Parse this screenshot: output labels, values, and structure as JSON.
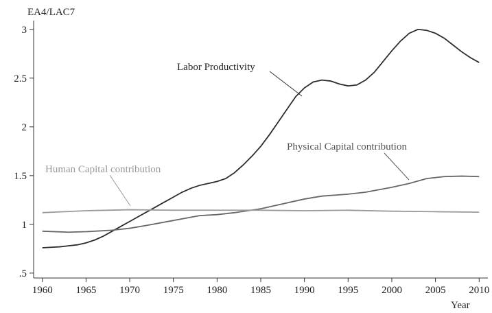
{
  "chart_data": {
    "type": "line",
    "y_label": "EA4/LAC7",
    "x_label": "Year",
    "xlim": [
      1959,
      2011
    ],
    "xticks": [
      1960,
      1965,
      1970,
      1975,
      1980,
      1985,
      1990,
      1995,
      2000,
      2005,
      2010
    ],
    "ylim": [
      0.45,
      3.09
    ],
    "yticks": [
      {
        "value": 0.5,
        "label": ".5"
      },
      1,
      1.5,
      2,
      2.5,
      3
    ],
    "grid": false,
    "annotations": [
      "Labor Productivity",
      "Physical Capital contribution",
      "Human Capital contribution"
    ],
    "series": [
      {
        "name": "Labor Productivity",
        "color": "#2b2b2b",
        "x": [
          1960,
          1961,
          1962,
          1963,
          1964,
          1965,
          1966,
          1967,
          1968,
          1969,
          1970,
          1971,
          1972,
          1973,
          1974,
          1975,
          1976,
          1977,
          1978,
          1979,
          1980,
          1981,
          1982,
          1983,
          1984,
          1985,
          1986,
          1987,
          1988,
          1989,
          1990,
          1991,
          1992,
          1993,
          1994,
          1995,
          1996,
          1997,
          1998,
          1999,
          2000,
          2001,
          2002,
          2003,
          2004,
          2005,
          2006,
          2007,
          2008,
          2009,
          2010
        ],
        "values": [
          0.76,
          0.765,
          0.77,
          0.78,
          0.79,
          0.81,
          0.84,
          0.88,
          0.93,
          0.98,
          1.03,
          1.08,
          1.13,
          1.18,
          1.23,
          1.28,
          1.33,
          1.37,
          1.4,
          1.42,
          1.44,
          1.47,
          1.53,
          1.61,
          1.7,
          1.8,
          1.92,
          2.05,
          2.18,
          2.31,
          2.4,
          2.46,
          2.48,
          2.47,
          2.44,
          2.42,
          2.43,
          2.48,
          2.56,
          2.67,
          2.78,
          2.88,
          2.96,
          3.0,
          2.99,
          2.96,
          2.91,
          2.84,
          2.77,
          2.71,
          2.66
        ]
      },
      {
        "name": "Physical Capital contribution",
        "color": "#666666",
        "x": [
          1960,
          1963,
          1965,
          1968,
          1970,
          1972,
          1975,
          1978,
          1980,
          1982,
          1985,
          1988,
          1990,
          1992,
          1995,
          1997,
          2000,
          2002,
          2004,
          2006,
          2008,
          2010
        ],
        "values": [
          0.93,
          0.92,
          0.925,
          0.94,
          0.96,
          0.99,
          1.04,
          1.09,
          1.1,
          1.12,
          1.16,
          1.22,
          1.26,
          1.29,
          1.31,
          1.33,
          1.38,
          1.42,
          1.47,
          1.49,
          1.495,
          1.49
        ]
      },
      {
        "name": "Human Capital contribution",
        "color": "#9a9a9a",
        "x": [
          1960,
          1965,
          1970,
          1975,
          1980,
          1985,
          1990,
          1995,
          2000,
          2005,
          2010
        ],
        "values": [
          1.12,
          1.14,
          1.15,
          1.145,
          1.145,
          1.145,
          1.14,
          1.145,
          1.135,
          1.13,
          1.125
        ]
      }
    ]
  }
}
